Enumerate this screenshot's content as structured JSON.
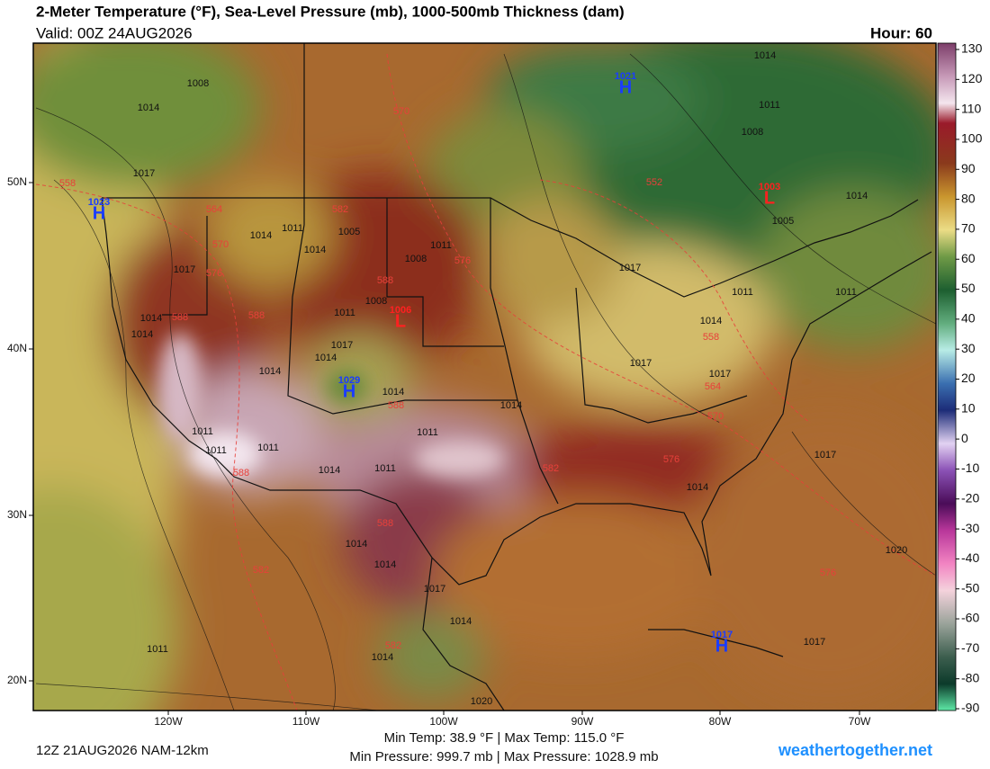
{
  "header": {
    "title": "2-Meter Temperature (°F), Sea-Level Pressure (mb), 1000-500mb Thickness (dam)",
    "valid": "Valid: 00Z 24AUG2026",
    "hour": "Hour: 60"
  },
  "map": {
    "centers": [
      {
        "letter": "H",
        "value": 1021,
        "color": "#1a3cff"
      },
      {
        "letter": "H",
        "value": 1023,
        "color": "#1a3cff"
      },
      {
        "letter": "L",
        "value": 1003,
        "color": "#ff2020"
      },
      {
        "letter": "L",
        "value": 1006,
        "color": "#ff2020"
      },
      {
        "letter": "H",
        "value": 1029,
        "color": "#1a3cff"
      },
      {
        "letter": "H",
        "value": 1017,
        "color": "#1a3cff"
      }
    ],
    "pressure_labels": [
      "1008",
      "1014",
      "1017",
      "1014",
      "1011",
      "1014",
      "1005",
      "1011",
      "1008",
      "1017",
      "1014",
      "1014",
      "1008",
      "1011",
      "1017",
      "1014",
      "1014",
      "1014",
      "1014",
      "1011",
      "1011",
      "1011",
      "1011",
      "1014",
      "1011",
      "1014",
      "1014",
      "1017",
      "1014",
      "1014",
      "1011",
      "1020",
      "1014",
      "1011",
      "1008",
      "1005",
      "1014",
      "1011",
      "1017",
      "1011",
      "1014",
      "1017",
      "1017",
      "1017",
      "1014",
      "1020",
      "1017"
    ],
    "thickness_labels": [
      "558",
      "570",
      "552",
      "564",
      "582",
      "570",
      "576",
      "576",
      "588",
      "588",
      "588",
      "558",
      "564",
      "570",
      "588",
      "576",
      "582",
      "588",
      "588",
      "582",
      "576",
      "582"
    ],
    "lon_labels": [
      "120W",
      "110W",
      "100W",
      "90W",
      "80W",
      "70W"
    ],
    "lat_labels": [
      "50N",
      "40N",
      "30N",
      "20N"
    ]
  },
  "colorbar": {
    "range": [
      -90,
      130
    ],
    "ticks": [
      130,
      120,
      110,
      100,
      90,
      80,
      70,
      60,
      50,
      40,
      30,
      20,
      10,
      0,
      -10,
      -20,
      -30,
      -40,
      -50,
      -60,
      -70,
      -80,
      -90
    ]
  },
  "footer": {
    "run": "12Z 21AUG2026 NAM-12km",
    "temp": "Min Temp:  38.9 °F | Max Temp: 115.0 °F",
    "pressure": "Min Pressure: 999.7 mb | Max Pressure: 1028.9 mb",
    "site": "weathertogether.net"
  }
}
